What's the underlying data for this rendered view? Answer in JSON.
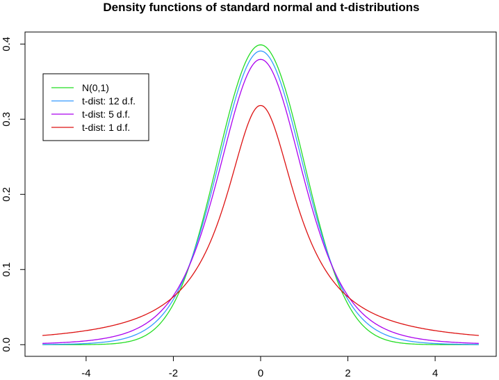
{
  "chart_data": {
    "type": "line",
    "title": "Density functions of standard normal and t-distributions",
    "xlabel": "",
    "ylabel": "",
    "xlim": [
      -5,
      5
    ],
    "ylim": [
      0,
      0.4
    ],
    "x_ticks": [
      -4,
      -2,
      0,
      2,
      4
    ],
    "x_tick_labels": [
      "-4",
      "-2",
      "0",
      "2",
      "4"
    ],
    "y_ticks": [
      0.0,
      0.1,
      0.2,
      0.3,
      0.4
    ],
    "y_tick_labels": [
      "0.0",
      "0.1",
      "0.2",
      "0.3",
      "0.4"
    ],
    "grid": false,
    "legend_position": "top-left",
    "x": [
      -5,
      -4.5,
      -4,
      -3.5,
      -3,
      -2.5,
      -2,
      -1.5,
      -1,
      -0.75,
      -0.5,
      -0.25,
      0,
      0.25,
      0.5,
      0.75,
      1,
      1.5,
      2,
      2.5,
      3,
      3.5,
      4,
      4.5,
      5
    ],
    "series": [
      {
        "name": "N(0,1)",
        "color": "#22dd22",
        "values": [
          1.5e-06,
          1.6e-05,
          0.00013,
          0.00087,
          0.0044,
          0.0175,
          0.054,
          0.1295,
          0.242,
          0.3011,
          0.3521,
          0.3867,
          0.3989,
          0.3867,
          0.3521,
          0.3011,
          0.242,
          0.1295,
          0.054,
          0.0175,
          0.0044,
          0.00087,
          0.00013,
          1.6e-05,
          1.5e-06
        ]
      },
      {
        "name": "t-dist: 12 d.f.",
        "color": "#3399ff",
        "values": [
          0.0002,
          0.0005,
          0.0012,
          0.0032,
          0.0085,
          0.0215,
          0.0553,
          0.1246,
          0.2277,
          0.2875,
          0.3423,
          0.379,
          0.3907,
          0.379,
          0.3423,
          0.2875,
          0.2277,
          0.1246,
          0.0553,
          0.0215,
          0.0085,
          0.0032,
          0.0012,
          0.0005,
          0.0002
        ]
      },
      {
        "name": "t-dist: 5 d.f.",
        "color": "#aa00ee",
        "values": [
          0.0018,
          0.003,
          0.0051,
          0.0088,
          0.0173,
          0.0329,
          0.0651,
          0.1245,
          0.2197,
          0.2748,
          0.3279,
          0.3668,
          0.3796,
          0.3668,
          0.3279,
          0.2748,
          0.2197,
          0.1245,
          0.0651,
          0.0329,
          0.0173,
          0.0088,
          0.0051,
          0.003,
          0.0018
        ]
      },
      {
        "name": "t-dist: 1 d.f.",
        "color": "#dd1111",
        "values": [
          0.0122,
          0.0149,
          0.0187,
          0.0241,
          0.0318,
          0.0439,
          0.0637,
          0.0979,
          0.1592,
          0.2037,
          0.2546,
          0.2996,
          0.3183,
          0.2996,
          0.2546,
          0.2037,
          0.1592,
          0.0979,
          0.0637,
          0.0439,
          0.0318,
          0.0241,
          0.0187,
          0.0149,
          0.0122
        ]
      }
    ]
  }
}
